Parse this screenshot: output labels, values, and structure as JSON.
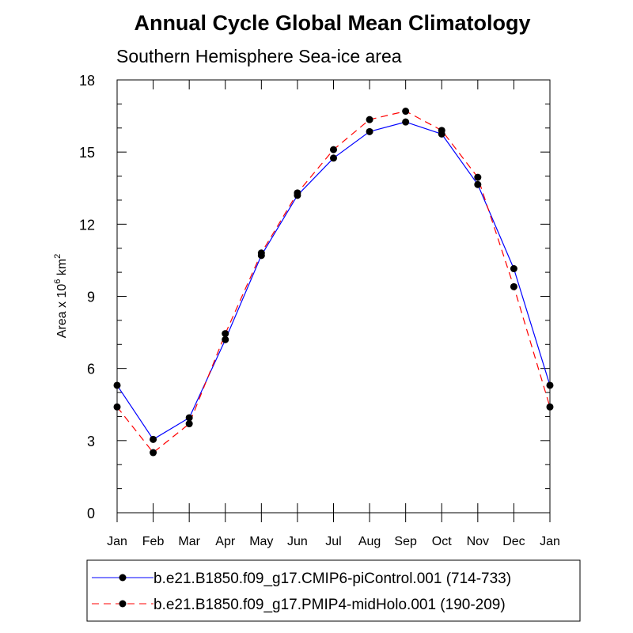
{
  "chart_data": {
    "type": "line",
    "title": "Annual Cycle Global Mean Climatology",
    "subtitle": "Southern Hemisphere Sea-ice area",
    "xlabel": "",
    "ylabel": {
      "prefix": "Area x 10",
      "exponent": "6",
      "unit": " km",
      "unit_exponent": "2"
    },
    "categories": [
      "Jan",
      "Feb",
      "Mar",
      "Apr",
      "May",
      "Jun",
      "Jul",
      "Aug",
      "Sep",
      "Oct",
      "Nov",
      "Dec",
      "Jan"
    ],
    "ylim": [
      0,
      18
    ],
    "yticks": [
      0,
      3,
      6,
      9,
      12,
      15,
      18
    ],
    "series": [
      {
        "name": "b.e21.B1850.f09_g17.CMIP6-piControl.001 (714-733)",
        "color": "#0000ff",
        "dash": "solid",
        "values": [
          5.3,
          3.05,
          3.95,
          7.2,
          10.7,
          13.2,
          14.75,
          15.85,
          16.25,
          15.75,
          13.65,
          10.15,
          5.3
        ]
      },
      {
        "name": "b.e21.B1850.f09_g17.PMIP4-midHolo.001 (190-209)",
        "color": "#ff0000",
        "dash": "dashed",
        "values": [
          4.4,
          2.5,
          3.7,
          7.45,
          10.8,
          13.3,
          15.1,
          16.35,
          16.7,
          15.9,
          13.95,
          9.4,
          4.4
        ]
      }
    ],
    "marker": "filled-circle",
    "marker_color": "#000000"
  }
}
